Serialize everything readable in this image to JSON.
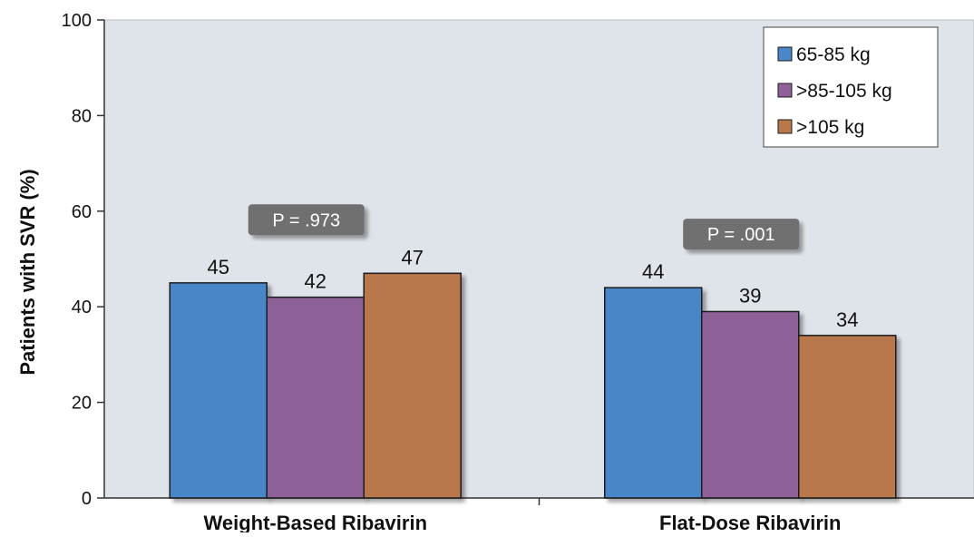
{
  "chart_data": {
    "type": "bar",
    "categories": [
      "Weight-Based Ribavirin",
      "Flat-Dose Ribavirin"
    ],
    "series": [
      {
        "name": "65-85 kg",
        "values": [
          45,
          44
        ],
        "color": "#4a86c8"
      },
      {
        "name": ">85-105 kg",
        "values": [
          42,
          39
        ],
        "color": "#8e6299"
      },
      {
        "name": ">105 kg",
        "values": [
          47,
          34
        ],
        "color": "#b9784b"
      }
    ],
    "ylabel": "Patients with SVR (%)",
    "ylim": [
      0,
      100
    ],
    "yticks": [
      0,
      20,
      40,
      60,
      80,
      100
    ],
    "grid": false,
    "legend": {
      "position": "top-right"
    },
    "annotations": [
      {
        "category": "Weight-Based Ribavirin",
        "text": "P = .973"
      },
      {
        "category": "Flat-Dose Ribavirin",
        "text": "P = .001"
      }
    ],
    "plot_background": "#dfe3ea"
  }
}
